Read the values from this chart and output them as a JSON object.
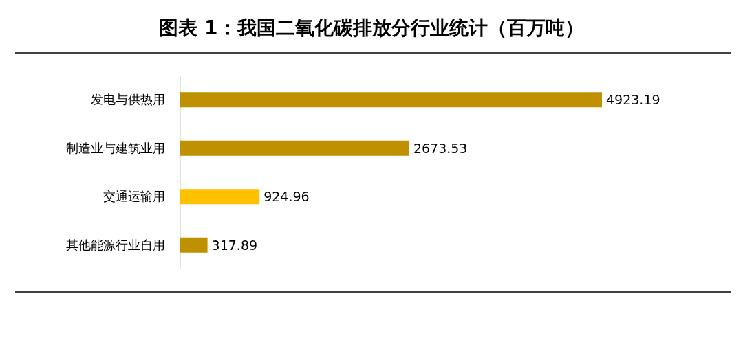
{
  "chart_data": {
    "type": "bar",
    "orientation": "horizontal",
    "title": "图表 1：我国二氧化碳排放分行业统计（百万吨）",
    "categories": [
      "发电与供热用",
      "制造业与建筑业用",
      "交通运输用",
      "其他能源行业自用"
    ],
    "values": [
      4923.19,
      2673.53,
      924.96,
      317.89
    ],
    "colors": [
      "#bf9000",
      "#bf9000",
      "#ffc000",
      "#bf9000"
    ],
    "data_labels": true
  }
}
